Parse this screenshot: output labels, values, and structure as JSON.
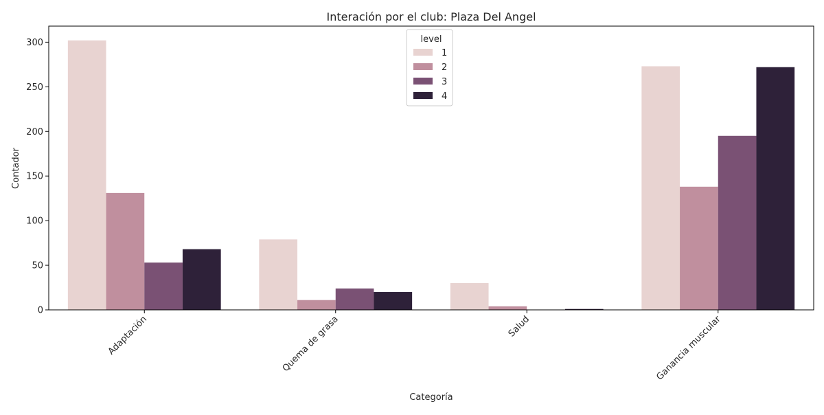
{
  "chart_data": {
    "type": "bar",
    "title": "Interación por el club: Plaza Del Angel",
    "xlabel": "Categoría",
    "ylabel": "Contador",
    "categories": [
      "Adaptación",
      "Quema de grasa",
      "Salud",
      "Ganancia muscular"
    ],
    "series": [
      {
        "name": "1",
        "color": "#e8d3d1",
        "values": [
          302,
          79,
          30,
          273
        ]
      },
      {
        "name": "2",
        "color": "#c08f9e",
        "values": [
          131,
          11,
          4,
          138
        ]
      },
      {
        "name": "3",
        "color": "#7a5174",
        "values": [
          53,
          24,
          0,
          195
        ]
      },
      {
        "name": "4",
        "color": "#2e2139",
        "values": [
          68,
          20,
          1,
          272
        ]
      }
    ],
    "ylim": [
      0,
      318
    ],
    "yticks": [
      0,
      50,
      100,
      150,
      200,
      250,
      300
    ],
    "xtick_rotation": 45,
    "grid": false,
    "legend": {
      "title": "level",
      "position": "top-center"
    }
  }
}
